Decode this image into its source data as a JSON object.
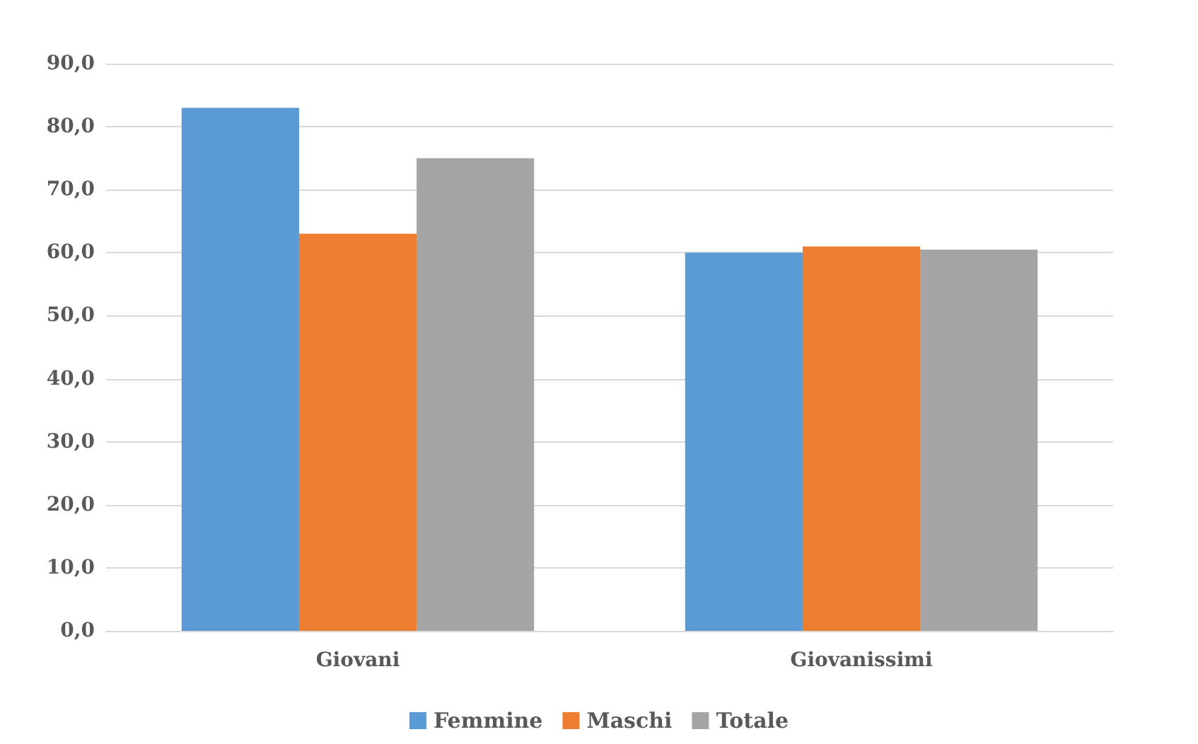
{
  "chart_data": {
    "type": "bar",
    "categories": [
      "Giovani",
      "Giovanissimi"
    ],
    "series": [
      {
        "name": "Femmine",
        "color": "#5b9bd5",
        "values": [
          83,
          60
        ]
      },
      {
        "name": "Maschi",
        "color": "#ed7d31",
        "values": [
          63,
          61
        ]
      },
      {
        "name": "Totale",
        "color": "#a5a5a5",
        "values": [
          75,
          60.5
        ]
      }
    ],
    "ylim": [
      0,
      90
    ],
    "yticks": [
      {
        "value": 0,
        "label": "0,0"
      },
      {
        "value": 10,
        "label": "10,0"
      },
      {
        "value": 20,
        "label": "20,0"
      },
      {
        "value": 30,
        "label": "30,0"
      },
      {
        "value": 40,
        "label": "40,0"
      },
      {
        "value": 50,
        "label": "50,0"
      },
      {
        "value": 60,
        "label": "60,0"
      },
      {
        "value": 70,
        "label": "70,0"
      },
      {
        "value": 80,
        "label": "80,0"
      },
      {
        "value": 90,
        "label": "90,0"
      }
    ],
    "grid": "y",
    "legend": "bottom"
  }
}
